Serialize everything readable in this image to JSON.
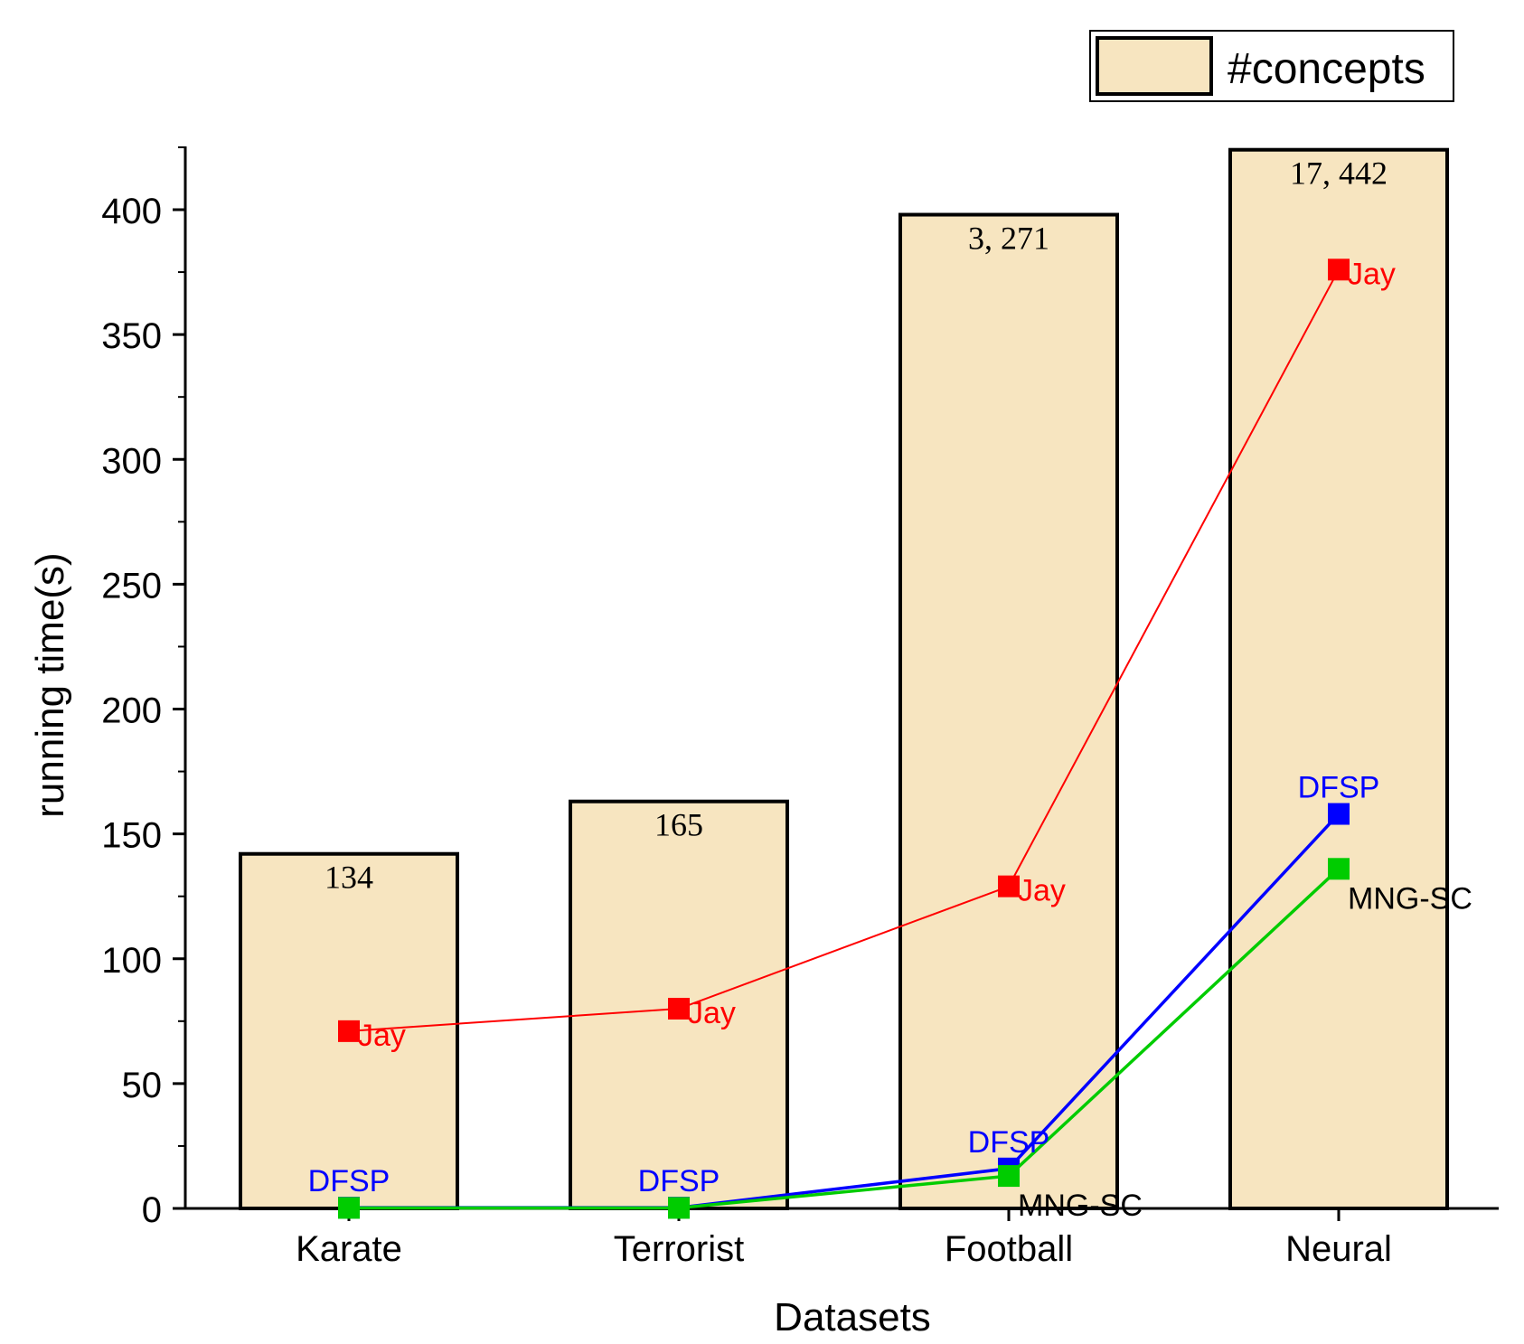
{
  "chart_data": {
    "type": "bar",
    "categories": [
      "Karate",
      "Terrorist",
      "Football",
      "Neural"
    ],
    "bars": {
      "name": "#concepts",
      "heights": [
        142,
        163,
        398,
        424
      ],
      "labels": [
        "134",
        "165",
        "3, 271",
        "17, 442"
      ],
      "color": "#f7e5c0"
    },
    "series": [
      {
        "name": "Jay",
        "values": [
          71,
          80,
          129,
          376
        ],
        "color": "#ff0000",
        "label_side": "right"
      },
      {
        "name": "DFSP",
        "values": [
          0.3,
          0.3,
          16,
          158
        ],
        "color": "#0000ff",
        "label_side": "above"
      },
      {
        "name": "MNG-SC",
        "values": [
          0.2,
          0.2,
          13,
          136
        ],
        "color": "#00cc00",
        "label_side": "below"
      }
    ],
    "point_labels": {
      "Jay": [
        "Jay",
        "Jay",
        "Jay",
        "Jay"
      ],
      "DFSP": [
        "DFSP",
        "DFSP",
        "DFSP",
        "DFSP"
      ],
      "MNG-SC": [
        "",
        "",
        "MNG-SC",
        "MNG-SC"
      ]
    },
    "xlabel": "Datasets",
    "ylabel": "running time(s)",
    "ylim": [
      0,
      425
    ],
    "yticks": [
      0,
      50,
      100,
      150,
      200,
      250,
      300,
      350,
      400
    ],
    "ytick_labels": [
      "0",
      "50",
      "100",
      "150",
      "200",
      "250",
      "300",
      "350",
      "400"
    ],
    "legend": {
      "label": "#concepts",
      "position": "top-right"
    },
    "grid": false
  }
}
